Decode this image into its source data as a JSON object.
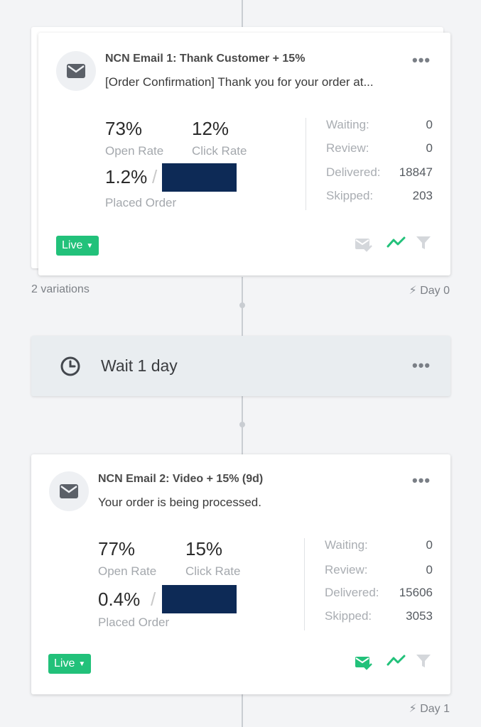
{
  "email1": {
    "title": "NCN Email 1: Thank Customer + 15%",
    "subject": "[Order Confirmation] Thank you for your order at...",
    "open_rate_value": "73%",
    "open_rate_label": "Open Rate",
    "click_rate_value": "12%",
    "click_rate_label": "Click Rate",
    "placed_order_value": "1.2%",
    "placed_order_label": "Placed Order",
    "stats": [
      {
        "label": "Waiting:",
        "value": "0"
      },
      {
        "label": "Review:",
        "value": "0"
      },
      {
        "label": "Delivered:",
        "value": "18847"
      },
      {
        "label": "Skipped:",
        "value": "203"
      }
    ],
    "status_label": "Live",
    "variations": "2 variations",
    "day": "Day 0"
  },
  "wait": {
    "label": "Wait 1 day"
  },
  "email2": {
    "title": "NCN Email 2: Video + 15% (9d)",
    "subject": "Your order is being processed.",
    "open_rate_value": "77%",
    "open_rate_label": "Open Rate",
    "click_rate_value": "15%",
    "click_rate_label": "Click Rate",
    "placed_order_value": "0.4%",
    "placed_order_label": "Placed Order",
    "stats": [
      {
        "label": "Waiting:",
        "value": "0"
      },
      {
        "label": "Review:",
        "value": "0"
      },
      {
        "label": "Delivered:",
        "value": "15606"
      },
      {
        "label": "Skipped:",
        "value": "3053"
      }
    ],
    "status_label": "Live",
    "day": "Day 1"
  },
  "more_label": "•••",
  "colors": {
    "live_green": "#22c17a",
    "redacted": "#0d2a56",
    "background": "#f3f4f6"
  }
}
